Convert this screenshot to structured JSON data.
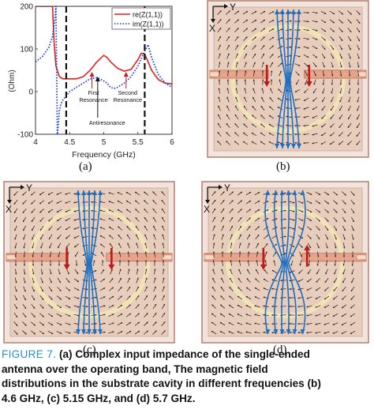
{
  "chart_data": {
    "type": "line",
    "xlabel": "Frequency (GHz)",
    "ylabel": "(Ohm)",
    "xlim": [
      4,
      6
    ],
    "ylim": [
      -100,
      200
    ],
    "xticks": [
      "4",
      "4.5",
      "5",
      "5.5",
      "6"
    ],
    "yticks": [
      "-100",
      "0",
      "100",
      "200"
    ],
    "legend_position": "top-right",
    "series": [
      {
        "name": "re(Z(1,1))",
        "color": "#e0201b",
        "style": "solid",
        "x": [
          4.0,
          4.1,
          4.15,
          4.2,
          4.23,
          4.25,
          4.27,
          4.3,
          4.35,
          4.4,
          4.5,
          4.6,
          4.7,
          4.8,
          4.9,
          5.0,
          5.05,
          5.1,
          5.2,
          5.3,
          5.4,
          5.5,
          5.55,
          5.6,
          5.65,
          5.7,
          5.8,
          5.9,
          6.0
        ],
        "y": [
          200,
          200,
          200,
          200,
          200,
          200,
          120,
          60,
          35,
          30,
          30,
          30,
          35,
          50,
          70,
          85,
          80,
          70,
          55,
          48,
          52,
          75,
          90,
          88,
          70,
          50,
          28,
          20,
          18
        ]
      },
      {
        "name": "im(Z(1,1))",
        "color": "#1d3fd6",
        "style": "dotted",
        "x": [
          4.0,
          4.1,
          4.2,
          4.25,
          4.28,
          4.3,
          4.32,
          4.33,
          4.35,
          4.37,
          4.4,
          4.45,
          4.5,
          4.6,
          4.7,
          4.8,
          4.9,
          5.0,
          5.05,
          5.1,
          5.15,
          5.2,
          5.3,
          5.4,
          5.5,
          5.6,
          5.65,
          5.7,
          5.8,
          5.9,
          6.0
        ],
        "y": [
          70,
          82,
          105,
          130,
          165,
          200,
          -100,
          -85,
          -45,
          -30,
          -20,
          -10,
          0,
          10,
          20,
          30,
          33,
          25,
          20,
          10,
          7,
          10,
          20,
          35,
          60,
          95,
          110,
          80,
          40,
          20,
          10
        ]
      }
    ],
    "markers": [
      4.45,
      5.6
    ],
    "annotations": [
      {
        "text": "First\nResonance",
        "x": 4.85,
        "y": -75
      },
      {
        "text": "Antiresonance",
        "x": 5.05,
        "y": -150
      },
      {
        "text": "Second\nResonance",
        "x": 5.35,
        "y": -75
      }
    ]
  },
  "panels": {
    "a": "(a)",
    "b": "(b)",
    "c": "(c)",
    "d": "(d)"
  },
  "axis_labels": {
    "x": "X",
    "y": "Y"
  },
  "caption": {
    "figure": "FIGURE 7.",
    "line1": "(a) Complex input impedance of the single-ended",
    "line2": "antenna over the operating band, The magnetic field",
    "line3": "distributions in the substrate cavity in different frequencies (b)",
    "line4": "4.6 GHz, (c) 5.15 GHz, and (d) 5.7 GHz."
  },
  "colors": {
    "caption_label": "#2b8fd0",
    "substrate": "#e8cdbd",
    "border": "#b08070",
    "feed_arrow": "#c01818",
    "field_arrow": "#1a6fc4"
  }
}
